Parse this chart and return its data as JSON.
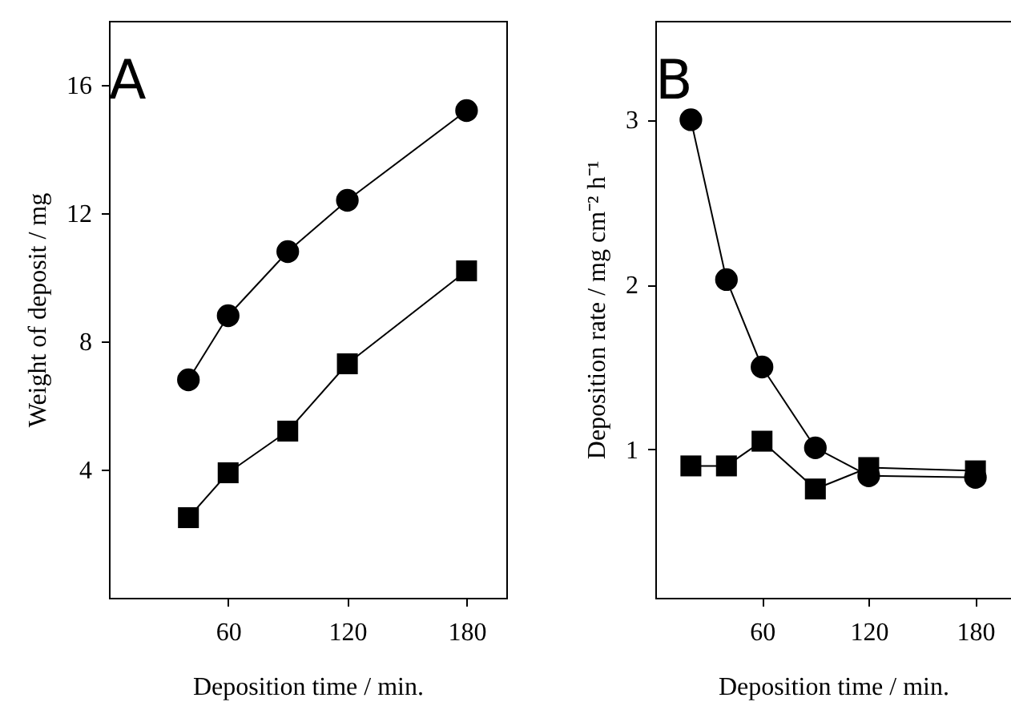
{
  "chart_data": [
    {
      "type": "line",
      "annotations": [
        "A"
      ],
      "xlabel": "Deposition time / min.",
      "ylabel": "Weight of deposit / mg",
      "x": [
        40,
        60,
        90,
        120,
        180
      ],
      "xlim": [
        0,
        200
      ],
      "xticks": [
        60,
        120,
        180
      ],
      "ylim": [
        0,
        18
      ],
      "yticks": [
        4,
        8,
        12,
        16
      ],
      "grid": false,
      "series": [
        {
          "color": "#000000",
          "marker": "circle",
          "values": [
            6.8,
            8.8,
            10.8,
            12.4,
            15.2
          ]
        },
        {
          "color": "#000000",
          "marker": "square",
          "values": [
            2.5,
            3.9,
            5.2,
            7.3,
            10.2
          ]
        }
      ]
    },
    {
      "type": "line",
      "annotations": [
        "B"
      ],
      "xlabel": "Deposition time / min.",
      "ylabel": "Deposition rate / mg cm⁻² h⁻¹",
      "x": [
        20,
        40,
        60,
        90,
        120,
        180
      ],
      "xlim": [
        0,
        200
      ],
      "xticks": [
        60,
        120,
        180
      ],
      "ylim": [
        0.1,
        3.6
      ],
      "yticks": [
        1,
        2,
        3
      ],
      "grid": false,
      "series": [
        {
          "color": "#000000",
          "marker": "circle",
          "values": [
            3.0,
            2.03,
            1.5,
            1.01,
            0.84,
            0.83
          ]
        },
        {
          "color": "#000000",
          "marker": "square",
          "values": [
            0.9,
            0.9,
            1.05,
            0.76,
            0.89,
            0.87
          ]
        }
      ]
    }
  ]
}
